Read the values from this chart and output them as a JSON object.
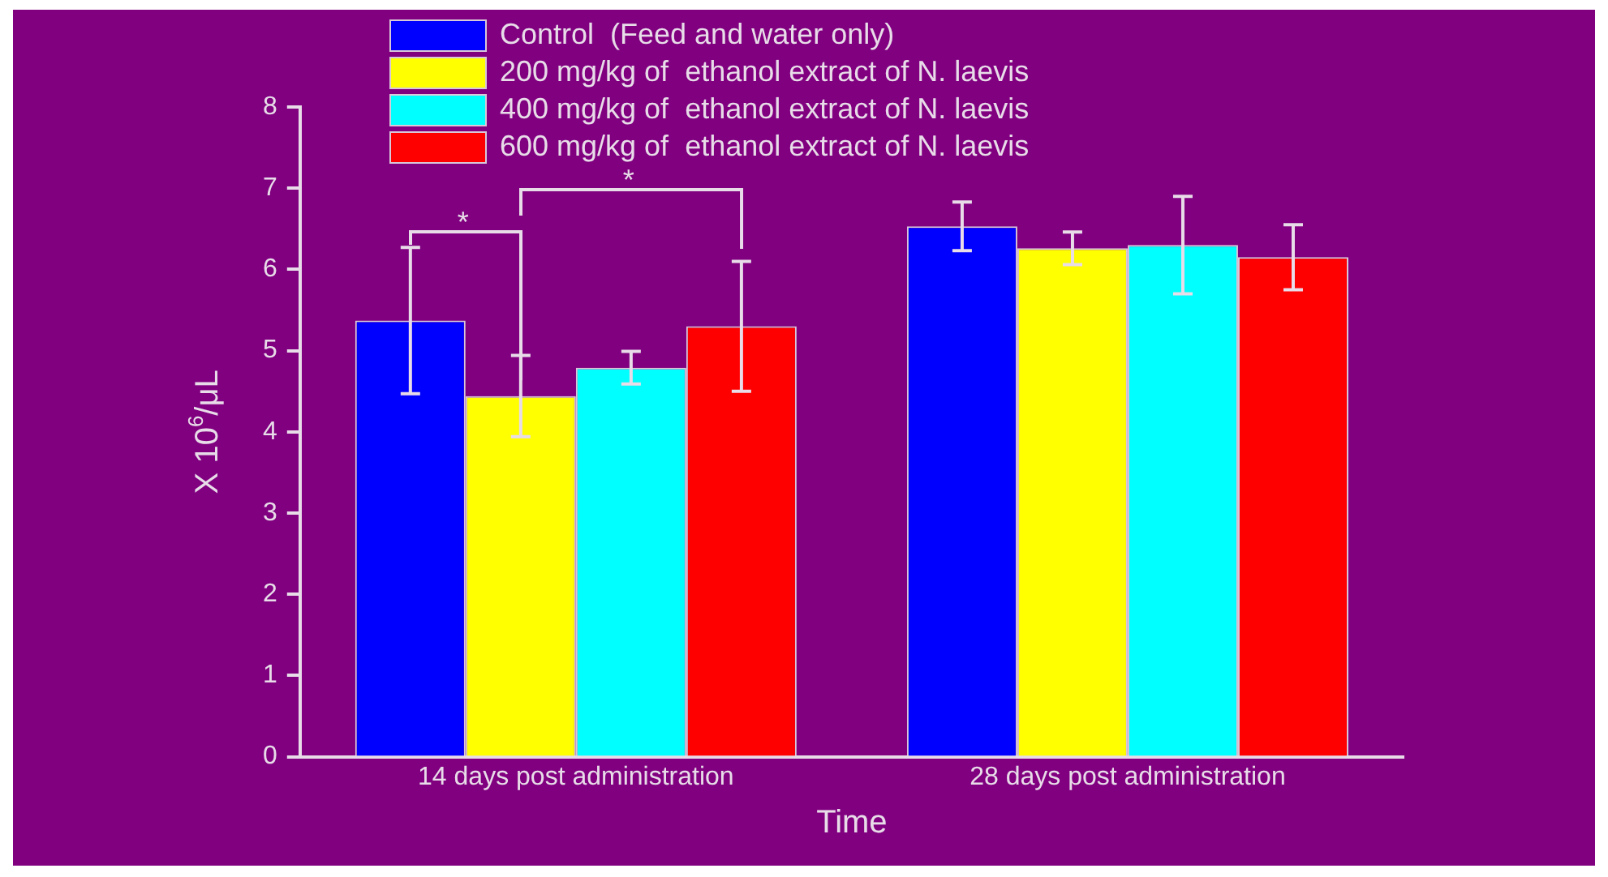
{
  "chart_data": {
    "type": "bar",
    "xlabel": "Time",
    "ylabel": "X 10$^{6}$/μL",
    "categories": [
      "14 days post administration",
      "28 days post administration"
    ],
    "series": [
      {
        "name": "Control  (Feed and water only)",
        "color": "#0000ff",
        "values": [
          5.37,
          6.53
        ],
        "errors": [
          0.9,
          0.3
        ]
      },
      {
        "name": "200 mg/kg of  ethanol extract of N. laevis",
        "color": "#ffff00",
        "values": [
          4.44,
          6.26
        ],
        "errors": [
          0.5,
          0.2
        ]
      },
      {
        "name": "400 mg/kg of  ethanol extract of N. laevis",
        "color": "#00ffff",
        "values": [
          4.79,
          6.3
        ],
        "errors": [
          0.2,
          0.6
        ]
      },
      {
        "name": "600 mg/kg of  ethanol extract of N. laevis",
        "color": "#ff0000",
        "values": [
          5.3,
          6.15
        ],
        "errors": [
          0.8,
          0.4
        ]
      }
    ],
    "ylim": [
      0,
      8
    ],
    "yticks": [
      0,
      1,
      2,
      3,
      4,
      5,
      6,
      7,
      8
    ],
    "grid": false,
    "legend": "top",
    "annotations": [
      "*",
      "*"
    ]
  }
}
